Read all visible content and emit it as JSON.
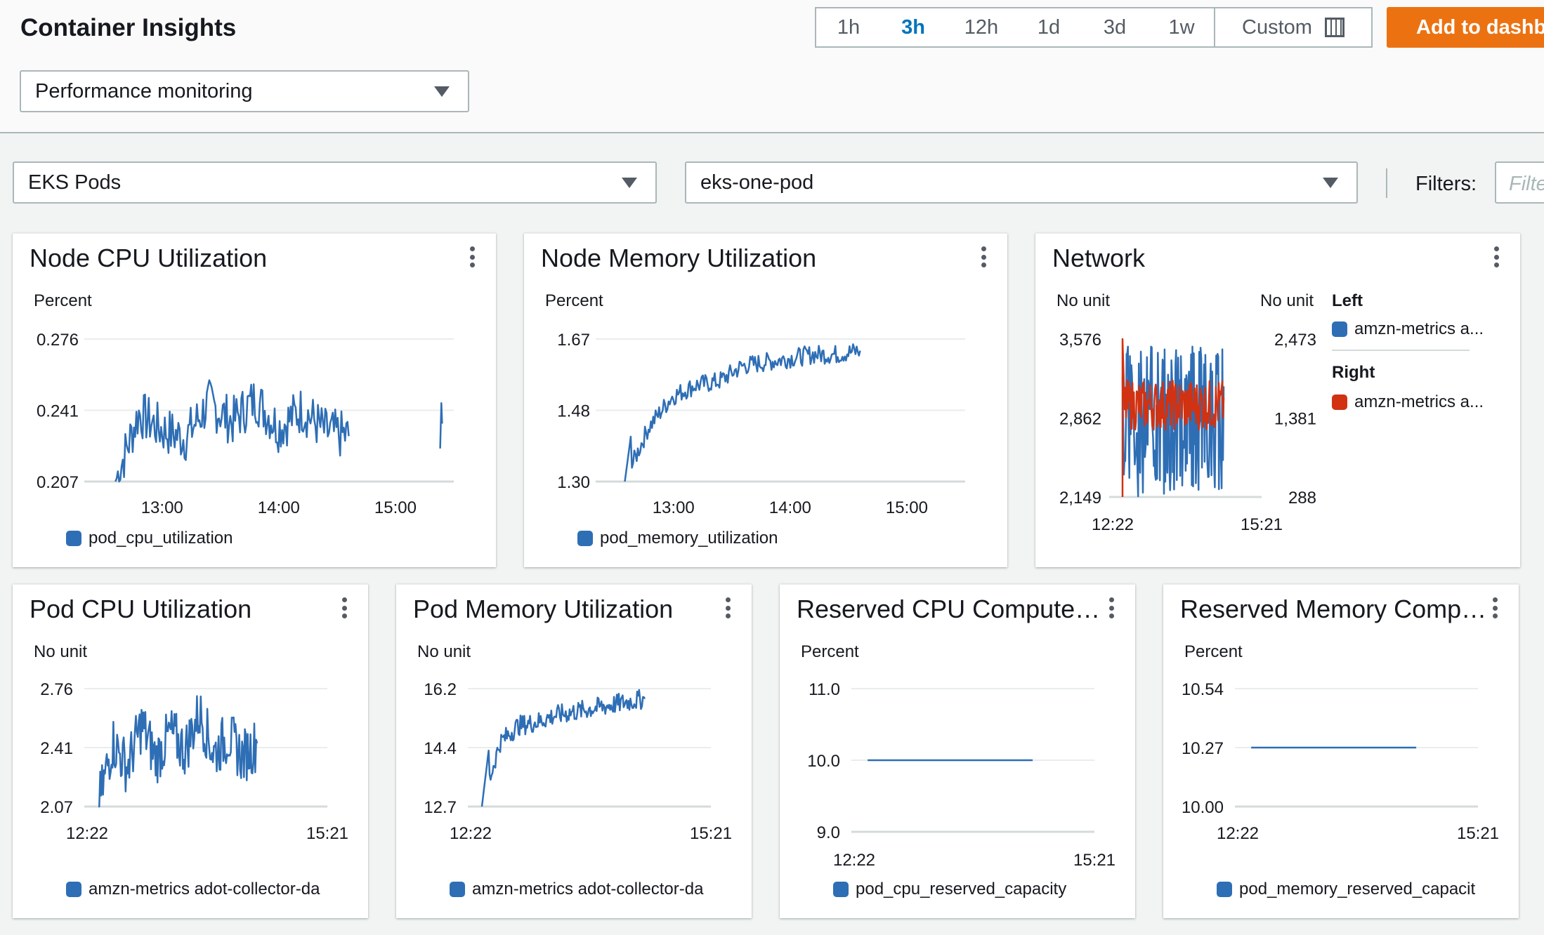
{
  "header": {
    "title": "Container Insights",
    "view_select": "Performance monitoring",
    "time_ranges": [
      "1h",
      "3h",
      "12h",
      "1d",
      "3d",
      "1w"
    ],
    "time_selected": "3h",
    "custom_label": "Custom",
    "add_button": "Add to dashboard"
  },
  "filters": {
    "resource_select": "EKS Pods",
    "pod_select": "eks-one-pod",
    "filters_label": "Filters:",
    "filter_placeholder": "Filter"
  },
  "colors": {
    "accent": "#0073bb",
    "series_blue": "#2e6eb5",
    "series_red": "#d13212",
    "button": "#ec7211"
  },
  "icons": [
    "caret-down-icon",
    "calendar-icon",
    "kebab-menu-icon"
  ],
  "widgets": [
    {
      "title": "Node CPU Utilization",
      "unit": "Percent",
      "legend": "pod_cpu_utilization"
    },
    {
      "title": "Node Memory Utilization",
      "unit": "Percent",
      "legend": "pod_memory_utilization"
    },
    {
      "title": "Network",
      "unit_left": "No unit",
      "unit_right": "No unit",
      "legend_left_title": "Left",
      "legend_left": "amzn-metrics a...",
      "legend_right_title": "Right",
      "legend_right": "amzn-metrics a..."
    },
    {
      "title": "Pod CPU Utilization",
      "unit": "No unit",
      "legend": "amzn-metrics adot-collector-da"
    },
    {
      "title": "Pod Memory Utilization",
      "unit": "No unit",
      "legend": "amzn-metrics adot-collector-da"
    },
    {
      "title": "Reserved CPU Compute …",
      "unit": "Percent",
      "legend": "pod_cpu_reserved_capacity"
    },
    {
      "title": "Reserved Memory Comp…",
      "unit": "Percent",
      "legend": "pod_memory_reserved_capacit"
    }
  ],
  "chart_data": [
    {
      "type": "line",
      "title": "Node CPU Utilization",
      "ylabel": "Percent",
      "yticks": [
        "0.276",
        "0.241",
        "0.207"
      ],
      "ylim": [
        0.207,
        0.276
      ],
      "xticks": [
        "13:00",
        "14:00",
        "15:00"
      ],
      "xlim": [
        "12:20",
        "15:30"
      ],
      "series": [
        {
          "name": "pod_cpu_utilization",
          "x": [
            "12:36",
            "12:48",
            "13:00",
            "13:12",
            "13:24",
            "13:36",
            "13:48",
            "14:00",
            "14:12",
            "14:24",
            "14:36",
            "15:23",
            "15:24"
          ],
          "values": [
            0.207,
            0.24,
            0.232,
            0.228,
            0.245,
            0.236,
            0.247,
            0.233,
            0.242,
            0.231,
            0.229,
            0.223,
            0.235
          ]
        }
      ]
    },
    {
      "type": "line",
      "title": "Node Memory Utilization",
      "ylabel": "Percent",
      "yticks": [
        "1.67",
        "1.48",
        "1.30"
      ],
      "ylim": [
        1.3,
        1.67
      ],
      "xticks": [
        "13:00",
        "14:00",
        "15:00"
      ],
      "xlim": [
        "12:20",
        "15:30"
      ],
      "series": [
        {
          "name": "pod_memory_utilization",
          "x": [
            "12:35",
            "12:40",
            "12:50",
            "13:00",
            "13:15",
            "13:30",
            "13:45",
            "14:00",
            "14:15",
            "14:30",
            "14:36"
          ],
          "values": [
            1.3,
            1.44,
            1.52,
            1.55,
            1.56,
            1.6,
            1.61,
            1.62,
            1.63,
            1.63,
            1.64
          ]
        }
      ]
    },
    {
      "type": "line",
      "title": "Network",
      "ylabel_left": "No unit",
      "ylabel_right": "No unit",
      "yticks_left": [
        "3,576",
        "2,862",
        "2,149"
      ],
      "yticks_right": [
        "2,473",
        "1,381",
        "288"
      ],
      "xticks": [
        "12:22",
        "15:21"
      ],
      "series": [
        {
          "name": "amzn-metrics a...",
          "axis": "left",
          "values": [
            2149,
            3100,
            2700,
            3300,
            2600,
            3000,
            2500,
            3400,
            2700,
            2900,
            2149,
            3200,
            2800,
            2950
          ]
        },
        {
          "name": "amzn-metrics a...",
          "axis": "right",
          "values": [
            288,
            2473,
            1500,
            1700,
            1300,
            1600,
            1400,
            1800,
            1350,
            1650,
            1450,
            1700,
            1500,
            1600
          ]
        }
      ]
    },
    {
      "type": "line",
      "title": "Pod CPU Utilization",
      "ylabel": "No unit",
      "yticks": [
        "2.76",
        "2.41",
        "2.07"
      ],
      "ylim": [
        2.07,
        2.76
      ],
      "xticks": [
        "12:22",
        "15:21"
      ],
      "series": [
        {
          "name": "amzn-metrics adot-collector-da",
          "values": [
            2.07,
            2.45,
            2.3,
            2.55,
            2.35,
            2.5,
            2.4,
            2.62,
            2.38,
            2.48,
            2.36,
            2.44
          ]
        }
      ]
    },
    {
      "type": "line",
      "title": "Pod Memory Utilization",
      "ylabel": "No unit",
      "yticks": [
        "16.2",
        "14.4",
        "12.7"
      ],
      "ylim": [
        12.7,
        16.2
      ],
      "xticks": [
        "12:22",
        "15:21"
      ],
      "series": [
        {
          "name": "amzn-metrics adot-collector-da",
          "values": [
            12.7,
            14.6,
            15.1,
            15.2,
            15.4,
            15.5,
            15.6,
            15.7,
            15.8,
            15.9
          ]
        }
      ]
    },
    {
      "type": "line",
      "title": "Reserved CPU Compute …",
      "ylabel": "Percent",
      "yticks": [
        "11.0",
        "10.0",
        "9.0"
      ],
      "ylim": [
        9.0,
        11.0
      ],
      "xticks": [
        "12:22",
        "15:21"
      ],
      "series": [
        {
          "name": "pod_cpu_reserved_capacity",
          "x": [
            "12:32",
            "14:35"
          ],
          "values": [
            10.0,
            10.0
          ]
        }
      ]
    },
    {
      "type": "line",
      "title": "Reserved Memory Comp…",
      "ylabel": "Percent",
      "yticks": [
        "10.54",
        "10.27",
        "10.00"
      ],
      "ylim": [
        10.0,
        10.54
      ],
      "xticks": [
        "12:22",
        "15:21"
      ],
      "series": [
        {
          "name": "pod_memory_reserved_capacit",
          "x": [
            "12:32",
            "14:35"
          ],
          "values": [
            10.27,
            10.27
          ]
        }
      ]
    }
  ]
}
